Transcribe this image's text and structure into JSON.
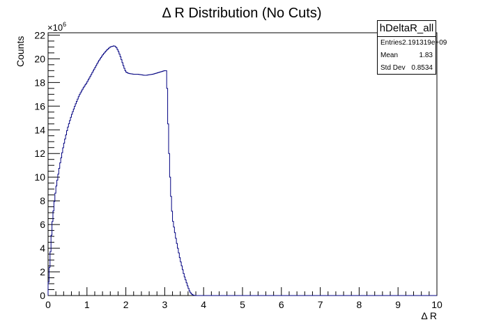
{
  "chart_data": {
    "type": "histogram",
    "title": "Δ R Distribution (No Cuts)",
    "xlabel": "Δ R",
    "ylabel": "Counts",
    "y_multiplier_label": "×10",
    "y_multiplier_exponent": "6",
    "xlim": [
      0,
      10
    ],
    "ylim": [
      0,
      22.2
    ],
    "x_ticks": [
      0,
      1,
      2,
      3,
      4,
      5,
      6,
      7,
      8,
      9,
      10
    ],
    "y_ticks": [
      0,
      2,
      4,
      6,
      8,
      10,
      12,
      14,
      16,
      18,
      20,
      22
    ],
    "line_color": "#000080",
    "grid": false,
    "series": [
      {
        "x": [
          0.0,
          0.05,
          0.1,
          0.15,
          0.2,
          0.3,
          0.4,
          0.5,
          0.6,
          0.7,
          0.8,
          0.9,
          1.0,
          1.1,
          1.2,
          1.3,
          1.4,
          1.5,
          1.6,
          1.7,
          1.75,
          1.8,
          1.85,
          1.9,
          1.95,
          2.0,
          2.05,
          2.1,
          2.2,
          2.3,
          2.4,
          2.5,
          2.6,
          2.7,
          2.8,
          2.9,
          3.0,
          3.05,
          3.1,
          3.15,
          3.2,
          3.3,
          3.4,
          3.5,
          3.6,
          3.65,
          3.7,
          3.75,
          3.8,
          4.0,
          5.0,
          6.0,
          7.0,
          8.0,
          9.0,
          10.0
        ],
        "y": [
          0.5,
          3.0,
          5.8,
          7.6,
          9.0,
          11.0,
          12.7,
          14.1,
          15.2,
          16.1,
          16.9,
          17.5,
          18.0,
          18.6,
          19.2,
          19.8,
          20.3,
          20.7,
          21.0,
          21.1,
          21.0,
          20.7,
          20.3,
          19.8,
          19.3,
          18.9,
          18.8,
          18.75,
          18.7,
          18.7,
          18.65,
          18.6,
          18.65,
          18.7,
          18.8,
          18.9,
          19.0,
          19.0,
          13.0,
          9.0,
          6.5,
          4.6,
          3.0,
          1.7,
          0.7,
          0.3,
          0.1,
          0.02,
          0.0,
          0.0,
          0.0,
          0.0,
          0.0,
          0.0,
          0.0,
          0.0
        ]
      }
    ]
  },
  "stats": {
    "title": "hDeltaR_all",
    "rows": [
      {
        "label": "Entries",
        "value": "2.191319e+09"
      },
      {
        "label": "Mean",
        "value": "1.83"
      },
      {
        "label": "Std Dev",
        "value": "0.8534"
      }
    ]
  }
}
